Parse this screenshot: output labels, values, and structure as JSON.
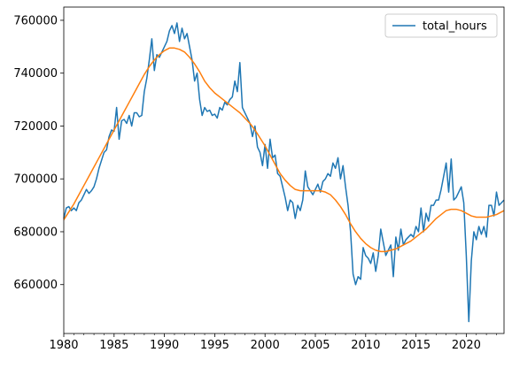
{
  "chart_data": {
    "type": "line",
    "title": "",
    "xlabel": "",
    "ylabel": "",
    "xlim": [
      1980,
      2023.75
    ],
    "ylim": [
      641500,
      765000
    ],
    "x_ticks": [
      1980,
      1985,
      1990,
      1995,
      2000,
      2005,
      2010,
      2015,
      2020
    ],
    "y_ticks": [
      660000,
      680000,
      700000,
      720000,
      740000,
      760000
    ],
    "grid": false,
    "legend": {
      "placement": "top-right",
      "entries": [
        "total_hours"
      ]
    },
    "series": [
      {
        "name": "total_hours",
        "color": "#1f77b4",
        "x": [
          1980.0,
          1980.25,
          1980.5,
          1980.75,
          1981.0,
          1981.25,
          1981.5,
          1981.75,
          1982.0,
          1982.25,
          1982.5,
          1982.75,
          1983.0,
          1983.25,
          1983.5,
          1983.75,
          1984.0,
          1984.25,
          1984.5,
          1984.75,
          1985.0,
          1985.25,
          1985.5,
          1985.75,
          1986.0,
          1986.25,
          1986.5,
          1986.75,
          1987.0,
          1987.25,
          1987.5,
          1987.75,
          1988.0,
          1988.25,
          1988.5,
          1988.75,
          1989.0,
          1989.25,
          1989.5,
          1989.75,
          1990.0,
          1990.25,
          1990.5,
          1990.75,
          1991.0,
          1991.25,
          1991.5,
          1991.75,
          1992.0,
          1992.25,
          1992.5,
          1992.75,
          1993.0,
          1993.25,
          1993.5,
          1993.75,
          1994.0,
          1994.25,
          1994.5,
          1994.75,
          1995.0,
          1995.25,
          1995.5,
          1995.75,
          1996.0,
          1996.25,
          1996.5,
          1996.75,
          1997.0,
          1997.25,
          1997.5,
          1997.75,
          1998.0,
          1998.25,
          1998.5,
          1998.75,
          1999.0,
          1999.25,
          1999.5,
          1999.75,
          2000.0,
          2000.25,
          2000.5,
          2000.75,
          2001.0,
          2001.25,
          2001.5,
          2001.75,
          2002.0,
          2002.25,
          2002.5,
          2002.75,
          2003.0,
          2003.25,
          2003.5,
          2003.75,
          2004.0,
          2004.25,
          2004.5,
          2004.75,
          2005.0,
          2005.25,
          2005.5,
          2005.75,
          2006.0,
          2006.25,
          2006.5,
          2006.75,
          2007.0,
          2007.25,
          2007.5,
          2007.75,
          2008.0,
          2008.25,
          2008.5,
          2008.75,
          2009.0,
          2009.25,
          2009.5,
          2009.75,
          2010.0,
          2010.25,
          2010.5,
          2010.75,
          2011.0,
          2011.25,
          2011.5,
          2011.75,
          2012.0,
          2012.25,
          2012.5,
          2012.75,
          2013.0,
          2013.25,
          2013.5,
          2013.75,
          2014.0,
          2014.25,
          2014.5,
          2014.75,
          2015.0,
          2015.25,
          2015.5,
          2015.75,
          2016.0,
          2016.25,
          2016.5,
          2016.75,
          2017.0,
          2017.25,
          2017.5,
          2017.75,
          2018.0,
          2018.25,
          2018.5,
          2018.75,
          2019.0,
          2019.25,
          2019.5,
          2019.75,
          2020.0,
          2020.25,
          2020.5,
          2020.75,
          2021.0,
          2021.25,
          2021.5,
          2021.75,
          2022.0,
          2022.25,
          2022.5,
          2022.75,
          2023.0,
          2023.25,
          2023.5,
          2023.75
        ],
        "values": [
          685000,
          689000,
          689500,
          688000,
          689000,
          688000,
          691000,
          692000,
          694000,
          696000,
          694500,
          695500,
          697000,
          700000,
          704000,
          707000,
          710000,
          711000,
          716000,
          718500,
          718000,
          727000,
          715000,
          722000,
          722500,
          721000,
          724000,
          720000,
          725000,
          725000,
          723500,
          724000,
          733000,
          738000,
          745000,
          753000,
          741000,
          747000,
          746000,
          748000,
          750000,
          752000,
          756000,
          758000,
          755000,
          759000,
          752000,
          757000,
          753000,
          755000,
          750000,
          745000,
          737000,
          740000,
          730000,
          724000,
          727000,
          725500,
          726000,
          724000,
          724500,
          723000,
          727000,
          726000,
          729000,
          728000,
          730000,
          731000,
          737000,
          733000,
          744000,
          727000,
          725000,
          723000,
          721000,
          716000,
          720000,
          712000,
          710000,
          705000,
          713000,
          704000,
          715000,
          708000,
          709000,
          702000,
          701000,
          697000,
          693000,
          688000,
          692000,
          691000,
          685000,
          690000,
          688000,
          692000,
          703000,
          697000,
          695500,
          694000,
          696000,
          698000,
          695000,
          699000,
          700000,
          702000,
          701000,
          706000,
          704000,
          708000,
          700000,
          705000,
          697000,
          690000,
          680000,
          664000,
          660000,
          663000,
          662000,
          674000,
          671000,
          670000,
          668000,
          672000,
          665000,
          671000,
          681000,
          676000,
          671000,
          673000,
          675000,
          663000,
          678000,
          673000,
          681000,
          675000,
          677000,
          678000,
          679000,
          678000,
          682000,
          680000,
          689000,
          680000,
          687000,
          684000,
          690000,
          690000,
          692000,
          692000,
          696000,
          701000,
          706000,
          695000,
          707500,
          692000,
          693000,
          695000,
          697000,
          691000,
          671000,
          646000,
          669000,
          680000,
          677000,
          682000,
          679000,
          682000,
          678000,
          690000,
          690000,
          686000,
          695000,
          690000,
          691000,
          692000
        ]
      },
      {
        "name": "",
        "color": "#ff7f0e",
        "x": [
          1980.0,
          1980.5,
          1981.0,
          1981.5,
          1982.0,
          1982.5,
          1983.0,
          1983.5,
          1984.0,
          1984.5,
          1985.0,
          1985.5,
          1986.0,
          1986.5,
          1987.0,
          1987.5,
          1988.0,
          1988.5,
          1989.0,
          1989.5,
          1990.0,
          1990.5,
          1991.0,
          1991.5,
          1992.0,
          1992.5,
          1993.0,
          1993.5,
          1994.0,
          1994.5,
          1995.0,
          1995.5,
          1996.0,
          1996.5,
          1997.0,
          1997.5,
          1998.0,
          1998.5,
          1999.0,
          1999.5,
          2000.0,
          2000.5,
          2001.0,
          2001.5,
          2002.0,
          2002.5,
          2003.0,
          2003.5,
          2004.0,
          2004.5,
          2005.0,
          2005.5,
          2006.0,
          2006.5,
          2007.0,
          2007.5,
          2008.0,
          2008.5,
          2009.0,
          2009.5,
          2010.0,
          2010.5,
          2011.0,
          2011.5,
          2012.0,
          2012.5,
          2013.0,
          2013.5,
          2014.0,
          2014.5,
          2015.0,
          2015.5,
          2016.0,
          2016.5,
          2017.0,
          2017.5,
          2018.0,
          2018.5,
          2019.0,
          2019.5,
          2020.0,
          2020.5,
          2021.0,
          2021.5,
          2022.0,
          2022.5,
          2023.0,
          2023.5,
          2023.75
        ],
        "values": [
          684500,
          687500,
          690500,
          694000,
          697500,
          701000,
          704500,
          708000,
          711500,
          715000,
          718500,
          722000,
          725500,
          729000,
          732500,
          736000,
          739500,
          742500,
          745000,
          747000,
          748500,
          749500,
          749500,
          749000,
          748000,
          746000,
          743500,
          740500,
          737000,
          734500,
          732500,
          731000,
          729500,
          728000,
          726500,
          725000,
          723000,
          721000,
          718500,
          715500,
          712500,
          709000,
          705500,
          702000,
          699500,
          697500,
          696000,
          695500,
          695500,
          695500,
          695500,
          695500,
          695000,
          694000,
          692000,
          689500,
          686500,
          683000,
          680000,
          677500,
          675500,
          674000,
          673000,
          672500,
          672500,
          673000,
          673500,
          674500,
          675500,
          676500,
          678000,
          679500,
          681000,
          683000,
          685000,
          686500,
          688000,
          688500,
          688500,
          688000,
          687000,
          686000,
          685500,
          685500,
          685500,
          686000,
          686500,
          687500,
          688000
        ]
      }
    ]
  }
}
